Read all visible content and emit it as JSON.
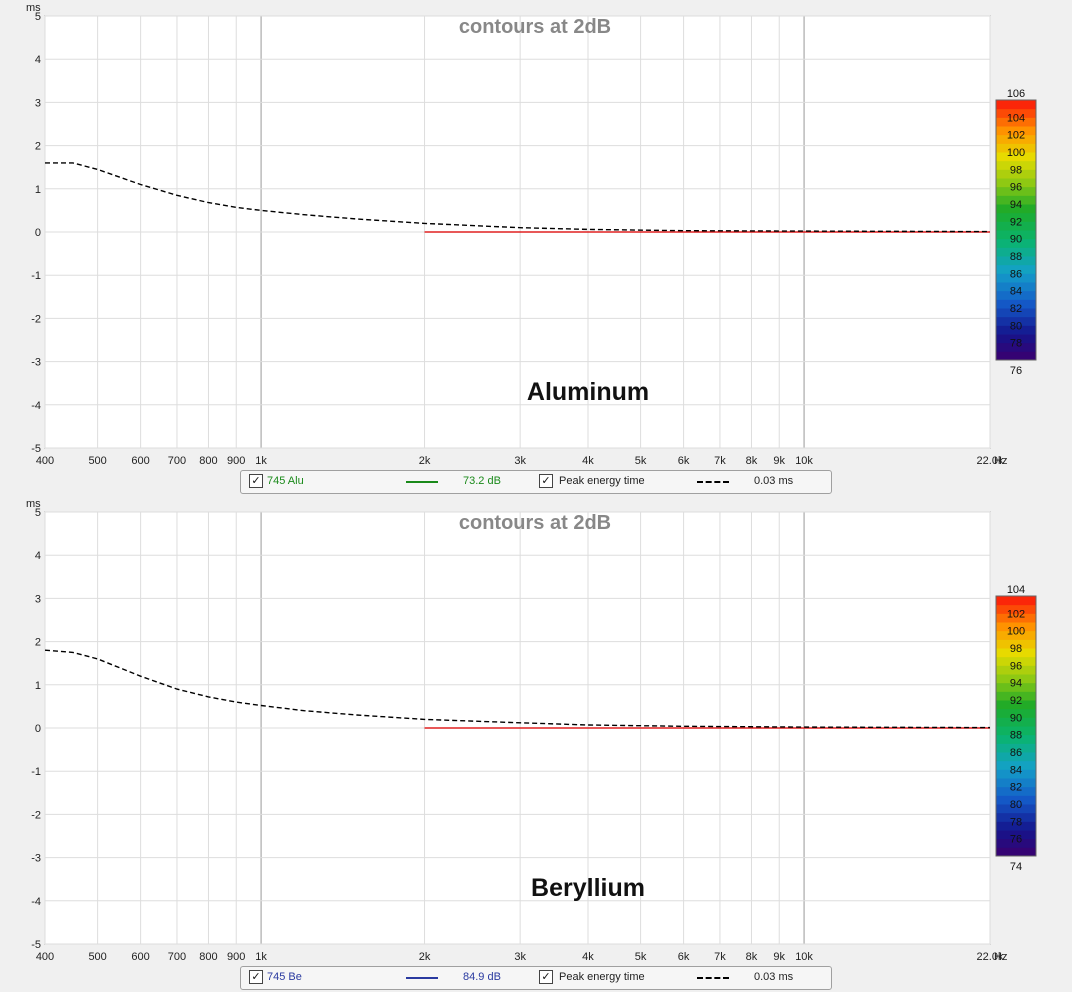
{
  "chart_data": [
    {
      "type": "heatmap",
      "title": "contours at 2dB",
      "annotation": "Aluminum",
      "xlabel_unit": "Hz",
      "ylabel_unit": "ms",
      "xscale": "log",
      "xlim": [
        400,
        22000
      ],
      "ylim": [
        -5,
        5
      ],
      "x_ticks": [
        400,
        500,
        600,
        700,
        800,
        900,
        1000,
        2000,
        3000,
        4000,
        5000,
        6000,
        7000,
        8000,
        9000,
        10000,
        22000
      ],
      "x_tick_labels": [
        "400",
        "500",
        "600",
        "700",
        "800",
        "900",
        "1k",
        "2k",
        "3k",
        "4k",
        "5k",
        "6k",
        "7k",
        "8k",
        "9k",
        "10k",
        "22.0k"
      ],
      "y_ticks": [
        5,
        4,
        3,
        2,
        1,
        0,
        -1,
        -2,
        -3,
        -4,
        -5
      ],
      "colorbar": {
        "min": 76,
        "max": 106,
        "ticks": [
          104,
          102,
          100,
          98,
          96,
          94,
          92,
          90,
          88,
          86,
          84,
          82,
          80,
          78
        ],
        "top_label": "106",
        "bottom_label": "76"
      },
      "peak_energy_curve": {
        "x": [
          400,
          450,
          500,
          600,
          700,
          800,
          900,
          1000,
          1200,
          1500,
          2000,
          3000,
          4000,
          6000,
          10000,
          22000
        ],
        "y": [
          1.6,
          1.6,
          1.45,
          1.1,
          0.85,
          0.68,
          0.57,
          0.5,
          0.4,
          0.3,
          0.2,
          0.1,
          0.06,
          0.03,
          0.02,
          0.01
        ]
      },
      "legend": {
        "series_name": "745 Alu",
        "series_color": "#1a8a1a",
        "series_value": "73.2 dB",
        "peak_label": "Peak energy time",
        "peak_value": "0.03 ms"
      }
    },
    {
      "type": "heatmap",
      "title": "contours at 2dB",
      "annotation": "Beryllium",
      "xlabel_unit": "Hz",
      "ylabel_unit": "ms",
      "xscale": "log",
      "xlim": [
        400,
        22000
      ],
      "ylim": [
        -5,
        5
      ],
      "x_ticks": [
        400,
        500,
        600,
        700,
        800,
        900,
        1000,
        2000,
        3000,
        4000,
        5000,
        6000,
        7000,
        8000,
        9000,
        10000,
        22000
      ],
      "x_tick_labels": [
        "400",
        "500",
        "600",
        "700",
        "800",
        "900",
        "1k",
        "2k",
        "3k",
        "4k",
        "5k",
        "6k",
        "7k",
        "8k",
        "9k",
        "10k",
        "22.0k"
      ],
      "y_ticks": [
        5,
        4,
        3,
        2,
        1,
        0,
        -1,
        -2,
        -3,
        -4,
        -5
      ],
      "colorbar": {
        "min": 74,
        "max": 104,
        "ticks": [
          102,
          100,
          98,
          96,
          94,
          92,
          90,
          88,
          86,
          84,
          82,
          80,
          78,
          76
        ],
        "top_label": "104",
        "bottom_label": "74"
      },
      "peak_energy_curve": {
        "x": [
          400,
          450,
          500,
          600,
          700,
          800,
          900,
          1000,
          1200,
          1500,
          2000,
          3000,
          4000,
          6000,
          10000,
          22000
        ],
        "y": [
          1.8,
          1.75,
          1.6,
          1.2,
          0.9,
          0.72,
          0.6,
          0.52,
          0.4,
          0.3,
          0.2,
          0.12,
          0.07,
          0.04,
          0.02,
          0.01
        ]
      },
      "legend": {
        "series_name": "745 Be",
        "series_color": "#2a3aa0",
        "series_value": "84.9 dB",
        "peak_label": "Peak energy time",
        "peak_value": "0.03 ms"
      }
    }
  ]
}
